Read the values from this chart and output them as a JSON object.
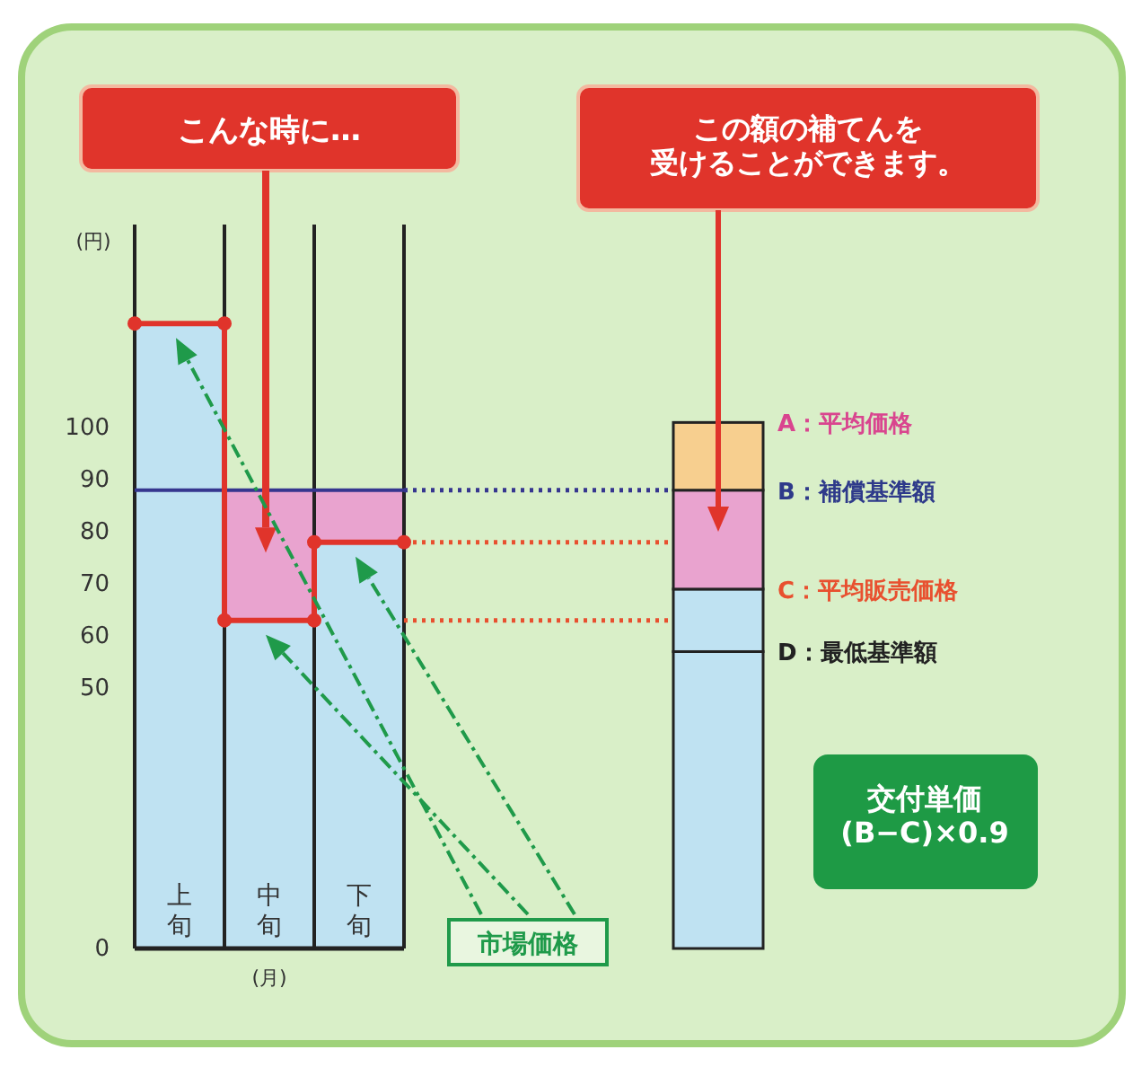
{
  "chart_data": {
    "type": "bar",
    "stacked": true,
    "ylabel": "(円)",
    "xlabel": "(月)",
    "categories": [
      "上旬",
      "中旬",
      "下旬",
      null,
      null,
      null,
      null
    ],
    "ylim": [
      0,
      139
    ],
    "yticks": [
      0,
      50,
      60,
      70,
      80,
      90,
      100
    ],
    "series": [
      {
        "color": "#bfe2f2",
        "values": [
          120,
          63,
          78,
          null,
          null,
          null,
          57
        ]
      },
      {
        "color": "#bfe2f2",
        "values": [
          null,
          null,
          null,
          null,
          null,
          null,
          12
        ]
      },
      {
        "color": "#e9a3cf",
        "values": [
          null,
          25,
          10,
          null,
          null,
          null,
          19
        ]
      },
      {
        "color": "#f7cf8f",
        "values": [
          null,
          null,
          null,
          null,
          null,
          null,
          13
        ]
      }
    ],
    "ref_lines": [
      {
        "axis": "y",
        "value": 88,
        "color": "#36368f",
        "line_style": "solid"
      },
      {
        "axis": "y",
        "value": 78,
        "color": "#e8502f",
        "line_style": "dotted"
      },
      {
        "axis": "y",
        "value": 63,
        "color": "#e8502f",
        "line_style": "dotted"
      }
    ],
    "annotations": [
      "こんな時に…",
      "この額の補てんを受けることができます。",
      "市場価格",
      "A：平均価格",
      "B：補償基準額",
      "C：平均販売価格",
      "D：最低基準額",
      "交付単価",
      "(B−C)×0.9"
    ]
  }
}
